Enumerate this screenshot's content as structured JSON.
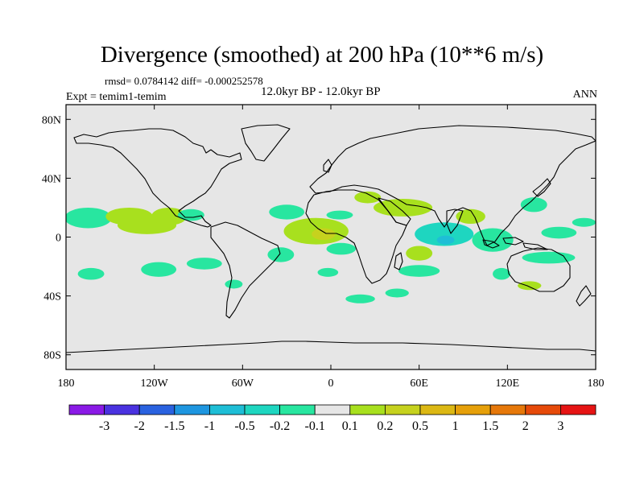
{
  "header": {
    "title": "Divergence (smoothed) at 200 hPa (10**6 m/s)",
    "stats": "rmsd= 0.0784142 diff= -0.000252578",
    "expt": "Expt = temim1-temim",
    "period": "12.0kyr BP - 12.0kyr BP",
    "season": "ANN"
  },
  "map": {
    "background_color": "#e6e6e6",
    "lat_ticks": [
      "80N",
      "40N",
      "0",
      "40S",
      "80S"
    ],
    "lon_ticks": [
      "180",
      "120W",
      "60W",
      "0",
      "60E",
      "120E",
      "180"
    ]
  },
  "colorbar": {
    "colors": [
      "#8a1ae6",
      "#4a32e0",
      "#2a62e0",
      "#1e96e0",
      "#1ebed6",
      "#1ed6c0",
      "#28e6a0",
      "#e6e6e6",
      "#a8e01e",
      "#c6d21e",
      "#dcb814",
      "#e6a00a",
      "#e6780a",
      "#e64a0a",
      "#e61414"
    ],
    "labels": [
      "-3",
      "-2",
      "-1.5",
      "-1",
      "-0.5",
      "-0.2",
      "-0.1",
      "0.1",
      "0.2",
      "0.5",
      "1",
      "1.5",
      "2",
      "3"
    ]
  },
  "chart_data": {
    "type": "map",
    "variable": "Divergence (smoothed) at 200 hPa",
    "units": "10**6 m/s",
    "projection": "cylindrical equidistant",
    "lon_range": [
      -180,
      180
    ],
    "lat_range": [
      -90,
      90
    ],
    "contour_levels": [
      -3,
      -2,
      -1.5,
      -1,
      -0.5,
      -0.2,
      -0.1,
      0.1,
      0.2,
      0.5,
      1,
      1.5,
      2,
      3
    ],
    "anomaly_regions": [
      {
        "name": "central-pacific-band",
        "lon": -165,
        "lat": 13,
        "rx": 16,
        "ry": 7,
        "value": -0.15
      },
      {
        "name": "central-pacific-east",
        "lon": -137,
        "lat": 14,
        "rx": 16,
        "ry": 6,
        "value": 0.15
      },
      {
        "name": "east-pacific-band",
        "lon": -125,
        "lat": 8,
        "rx": 20,
        "ry": 6,
        "value": 0.15
      },
      {
        "name": "hawaii-west",
        "lon": -110,
        "lat": 14,
        "rx": 12,
        "ry": 6,
        "value": 0.15
      },
      {
        "name": "mexico-west",
        "lon": -95,
        "lat": 15,
        "rx": 9,
        "ry": 4,
        "value": -0.15
      },
      {
        "name": "south-pacific-west",
        "lon": -163,
        "lat": -25,
        "rx": 9,
        "ry": 4,
        "value": -0.15
      },
      {
        "name": "south-pacific-mid",
        "lon": -117,
        "lat": -22,
        "rx": 12,
        "ry": 5,
        "value": -0.15
      },
      {
        "name": "south-pacific-east",
        "lon": -86,
        "lat": -18,
        "rx": 12,
        "ry": 4,
        "value": -0.15
      },
      {
        "name": "south-pacific-far",
        "lon": -66,
        "lat": -32,
        "rx": 6,
        "ry": 3,
        "value": -0.15
      },
      {
        "name": "north-atlantic",
        "lon": -30,
        "lat": 17,
        "rx": 12,
        "ry": 5,
        "value": -0.15
      },
      {
        "name": "south-atlantic",
        "lon": -34,
        "lat": -12,
        "rx": 9,
        "ry": 5,
        "value": -0.15
      },
      {
        "name": "equatorial-atlantic",
        "lon": -10,
        "lat": 4,
        "rx": 22,
        "ry": 9,
        "value": 0.2
      },
      {
        "name": "atlantic-core",
        "lon": -5,
        "lat": 2,
        "rx": 8,
        "ry": 4,
        "value": 0.5
      },
      {
        "name": "gulf-of-guinea-east",
        "lon": 7,
        "lat": -8,
        "rx": 10,
        "ry": 4,
        "value": -0.15
      },
      {
        "name": "south-atlantic-east",
        "lon": -2,
        "lat": -24,
        "rx": 7,
        "ry": 3,
        "value": -0.15
      },
      {
        "name": "north-africa",
        "lon": 25,
        "lat": 27,
        "rx": 9,
        "ry": 4,
        "value": 0.15
      },
      {
        "name": "africa-east",
        "lon": 49,
        "lat": 20,
        "rx": 20,
        "ry": 6,
        "value": 0.15
      },
      {
        "name": "sahel",
        "lon": 6,
        "lat": 15,
        "rx": 9,
        "ry": 3,
        "value": -0.15
      },
      {
        "name": "east-africa",
        "lon": 60,
        "lat": -11,
        "rx": 9,
        "ry": 5,
        "value": 0.15
      },
      {
        "name": "southern-ocean-atl",
        "lon": 20,
        "lat": -42,
        "rx": 10,
        "ry": 3,
        "value": -0.15
      },
      {
        "name": "southern-ocean-ind",
        "lon": 45,
        "lat": -38,
        "rx": 8,
        "ry": 3,
        "value": -0.15
      },
      {
        "name": "indian-ocean",
        "lon": 77,
        "lat": 2,
        "rx": 20,
        "ry": 8,
        "value": -0.2
      },
      {
        "name": "indian-core",
        "lon": 78,
        "lat": -2,
        "rx": 6,
        "ry": 3,
        "value": -0.5
      },
      {
        "name": "bay-of-bengal",
        "lon": 95,
        "lat": 14,
        "rx": 10,
        "ry": 5,
        "value": 0.2
      },
      {
        "name": "maritime-continent",
        "lon": 110,
        "lat": -2,
        "rx": 14,
        "ry": 8,
        "value": -0.15
      },
      {
        "name": "west-pacific",
        "lon": 138,
        "lat": 22,
        "rx": 9,
        "ry": 5,
        "value": -0.15
      },
      {
        "name": "west-pacific-south",
        "lon": 148,
        "lat": -14,
        "rx": 18,
        "ry": 4,
        "value": -0.15
      },
      {
        "name": "west-pacific-mid",
        "lon": 155,
        "lat": 3,
        "rx": 12,
        "ry": 4,
        "value": -0.15
      },
      {
        "name": "dateline-north",
        "lon": 172,
        "lat": 10,
        "rx": 8,
        "ry": 3,
        "value": -0.15
      },
      {
        "name": "south-indian",
        "lon": 60,
        "lat": -23,
        "rx": 14,
        "ry": 4,
        "value": -0.15
      },
      {
        "name": "australia-nw",
        "lon": 116,
        "lat": -25,
        "rx": 6,
        "ry": 4,
        "value": -0.15
      },
      {
        "name": "south-pacific-aus",
        "lon": 135,
        "lat": -33,
        "rx": 8,
        "ry": 3,
        "value": 0.15
      }
    ]
  }
}
